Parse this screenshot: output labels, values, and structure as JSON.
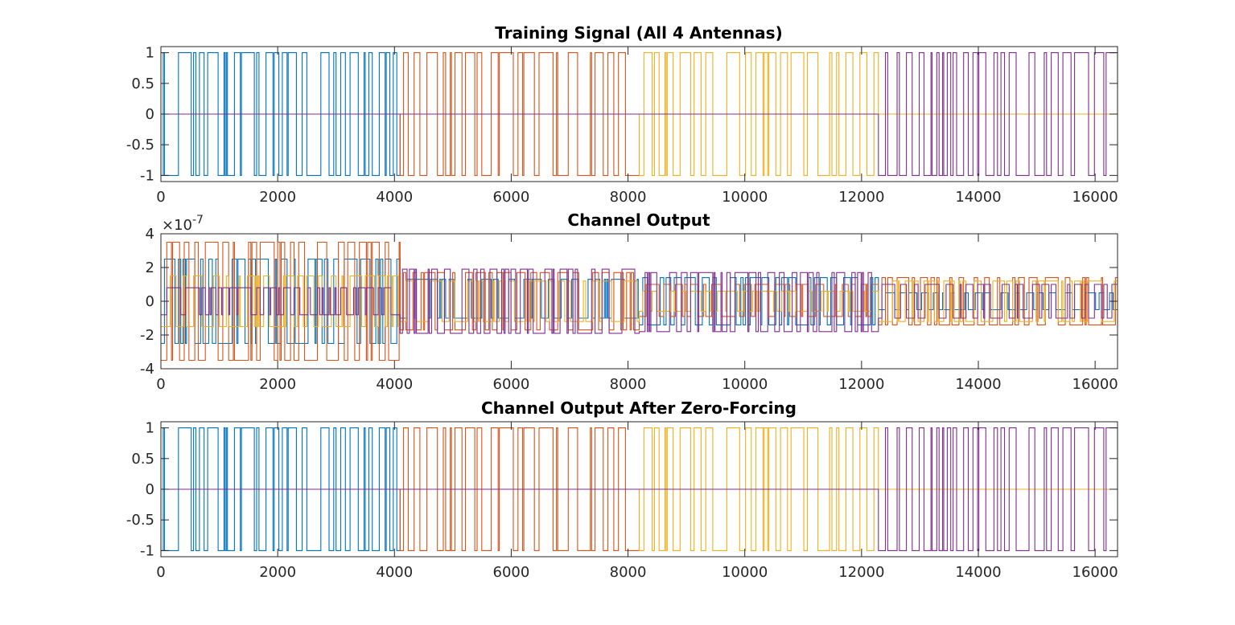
{
  "figure": {
    "background": "#ffffff"
  },
  "colors": [
    "#0072BD",
    "#D95319",
    "#EDB120",
    "#7E2F8E"
  ],
  "chart_data": [
    {
      "type": "line",
      "title": "Training Signal (All 4 Antennas)",
      "xlim": [
        0,
        16384
      ],
      "ylim": [
        -1.1,
        1.1
      ],
      "xticks": [
        0,
        2000,
        4000,
        6000,
        8000,
        10000,
        12000,
        14000,
        16000
      ],
      "yticks": [
        1,
        0.5,
        0,
        -0.5,
        -1
      ],
      "xtick_labels": [
        "0",
        "2000",
        "4000",
        "6000",
        "8000",
        "10000",
        "12000",
        "14000",
        "16000"
      ],
      "ytick_labels": [
        "1",
        "0.5",
        "0",
        "-0.5",
        "-1"
      ],
      "exponent_label": "",
      "series": [
        {
          "x": [
            0,
            4096
          ],
          "pattern": "bpsk",
          "levels": [
            -1,
            1
          ],
          "seed": 11,
          "zero_elsewhere": true
        },
        {
          "x": [
            4096,
            8192
          ],
          "pattern": "bpsk",
          "levels": [
            -1,
            1
          ],
          "seed": 23,
          "zero_elsewhere": true
        },
        {
          "x": [
            8192,
            12288
          ],
          "pattern": "bpsk",
          "levels": [
            -1,
            1
          ],
          "seed": 37,
          "zero_elsewhere": true
        },
        {
          "x": [
            12288,
            16384
          ],
          "pattern": "bpsk",
          "levels": [
            -1,
            1
          ],
          "seed": 41,
          "zero_elsewhere": true
        }
      ]
    },
    {
      "type": "line",
      "title": "Channel Output",
      "xlim": [
        0,
        16384
      ],
      "ylim": [
        -4,
        4
      ],
      "xticks": [
        0,
        2000,
        4000,
        6000,
        8000,
        10000,
        12000,
        14000,
        16000
      ],
      "yticks": [
        4,
        2,
        0,
        -2,
        -4
      ],
      "xtick_labels": [
        "0",
        "2000",
        "4000",
        "6000",
        "8000",
        "10000",
        "12000",
        "14000",
        "16000"
      ],
      "ytick_labels": [
        "4",
        "2",
        "0",
        "-2",
        "-4"
      ],
      "exponent_label": "×10",
      "exponent_power": "-7",
      "segments": [
        {
          "x": [
            0,
            4096
          ],
          "levels": [
            [
              -2.5,
              2.5
            ],
            [
              -3.5,
              3.5
            ],
            [
              -1.5,
              1.5
            ],
            [
              -0.8,
              0.8
            ]
          ]
        },
        {
          "x": [
            4096,
            8192
          ],
          "levels": [
            [
              -1.0,
              1.3
            ],
            [
              -1.7,
              1.7
            ],
            [
              -1.2,
              1.2
            ],
            [
              -1.9,
              1.9
            ]
          ]
        },
        {
          "x": [
            8192,
            12288
          ],
          "levels": [
            [
              -1.4,
              1.4
            ],
            [
              -0.9,
              1.0
            ],
            [
              -0.6,
              0.6
            ],
            [
              -1.8,
              1.7
            ]
          ]
        },
        {
          "x": [
            12288,
            16384
          ],
          "levels": [
            [
              -0.5,
              0.5
            ],
            [
              -1.4,
              1.4
            ],
            [
              -1.2,
              1.2
            ],
            [
              -1.0,
              1.0
            ]
          ]
        }
      ]
    },
    {
      "type": "line",
      "title": "Channel Output After Zero-Forcing",
      "xlim": [
        0,
        16384
      ],
      "ylim": [
        -1.1,
        1.1
      ],
      "xticks": [
        0,
        2000,
        4000,
        6000,
        8000,
        10000,
        12000,
        14000,
        16000
      ],
      "yticks": [
        1,
        0.5,
        0,
        -0.5,
        -1
      ],
      "xtick_labels": [
        "0",
        "2000",
        "4000",
        "6000",
        "8000",
        "10000",
        "12000",
        "14000",
        "16000"
      ],
      "ytick_labels": [
        "1",
        "0.5",
        "0",
        "-0.5",
        "-1"
      ],
      "exponent_label": "",
      "series": [
        {
          "x": [
            0,
            4096
          ],
          "pattern": "bpsk",
          "levels": [
            -1,
            1
          ],
          "seed": 11,
          "zero_elsewhere": true
        },
        {
          "x": [
            4096,
            8192
          ],
          "pattern": "bpsk",
          "levels": [
            -1,
            1
          ],
          "seed": 23,
          "zero_elsewhere": true
        },
        {
          "x": [
            8192,
            12288
          ],
          "pattern": "bpsk",
          "levels": [
            -1,
            1
          ],
          "seed": 37,
          "zero_elsewhere": true
        },
        {
          "x": [
            12288,
            16384
          ],
          "pattern": "bpsk",
          "levels": [
            -1,
            1
          ],
          "seed": 41,
          "zero_elsewhere": true
        }
      ]
    }
  ]
}
